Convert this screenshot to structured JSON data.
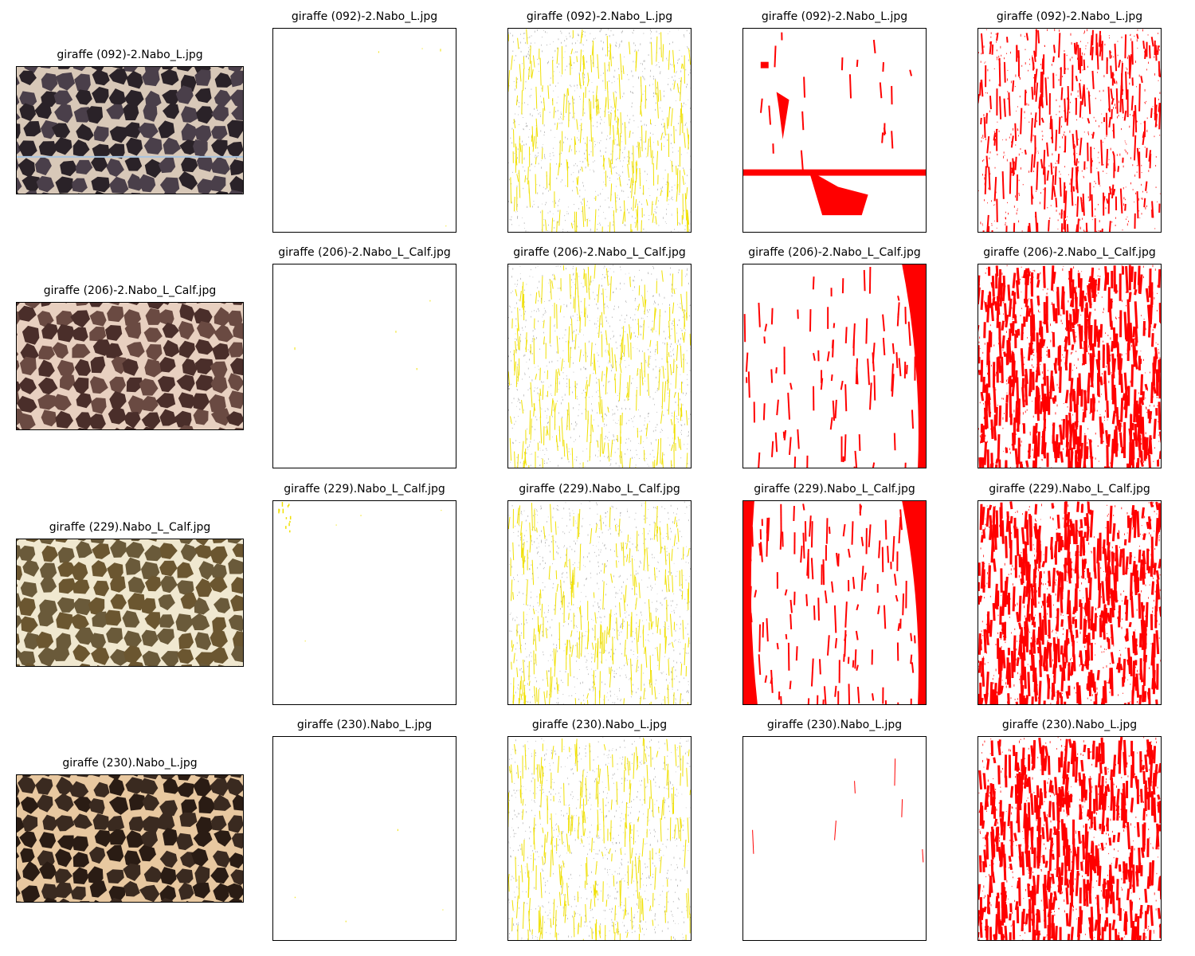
{
  "rows": [
    {
      "titles": [
        "giraffe (092)-2.Nabo_L.jpg",
        "giraffe (092)-2.Nabo_L.jpg",
        "giraffe (092)-2.Nabo_L.jpg",
        "giraffe (092)-2.Nabo_L.jpg",
        "giraffe (092)-2.Nabo_L.jpg"
      ],
      "photo": {
        "base": "#4a3f4a",
        "patch": "#2a2228",
        "line": "#d8c8b8",
        "horizon_line": true
      }
    },
    {
      "titles": [
        "giraffe (206)-2.Nabo_L_Calf.jpg",
        "giraffe (206)-2.Nabo_L_Calf.jpg",
        "giraffe (206)-2.Nabo_L_Calf.jpg",
        "giraffe (206)-2.Nabo_L_Calf.jpg",
        "giraffe (206)-2.Nabo_L_Calf.jpg"
      ],
      "photo": {
        "base": "#6a4a42",
        "patch": "#4a2e2a",
        "line": "#e8d0c0",
        "horizon_line": false
      }
    },
    {
      "titles": [
        "giraffe (229).Nabo_L_Calf.jpg",
        "giraffe (229).Nabo_L_Calf.jpg",
        "giraffe (229).Nabo_L_Calf.jpg",
        "giraffe (229).Nabo_L_Calf.jpg",
        "giraffe (229).Nabo_L_Calf.jpg"
      ],
      "photo": {
        "base": "#6a5a3a",
        "patch": "#6b5630",
        "line": "#f0e8d0",
        "horizon_line": false
      }
    },
    {
      "titles": [
        "giraffe (230).Nabo_L.jpg",
        "giraffe (230).Nabo_L.jpg",
        "giraffe (230).Nabo_L.jpg",
        "giraffe (230).Nabo_L.jpg",
        "giraffe (230).Nabo_L.jpg"
      ],
      "photo": {
        "base": "#3a2a20",
        "patch": "#2a1c14",
        "line": "#e8c8a0",
        "horizon_line": false
      }
    }
  ],
  "colors": {
    "mask_yellow": "#f0e000",
    "mask_red": "#ff0000",
    "speck_gray": "#9a9a9a"
  }
}
